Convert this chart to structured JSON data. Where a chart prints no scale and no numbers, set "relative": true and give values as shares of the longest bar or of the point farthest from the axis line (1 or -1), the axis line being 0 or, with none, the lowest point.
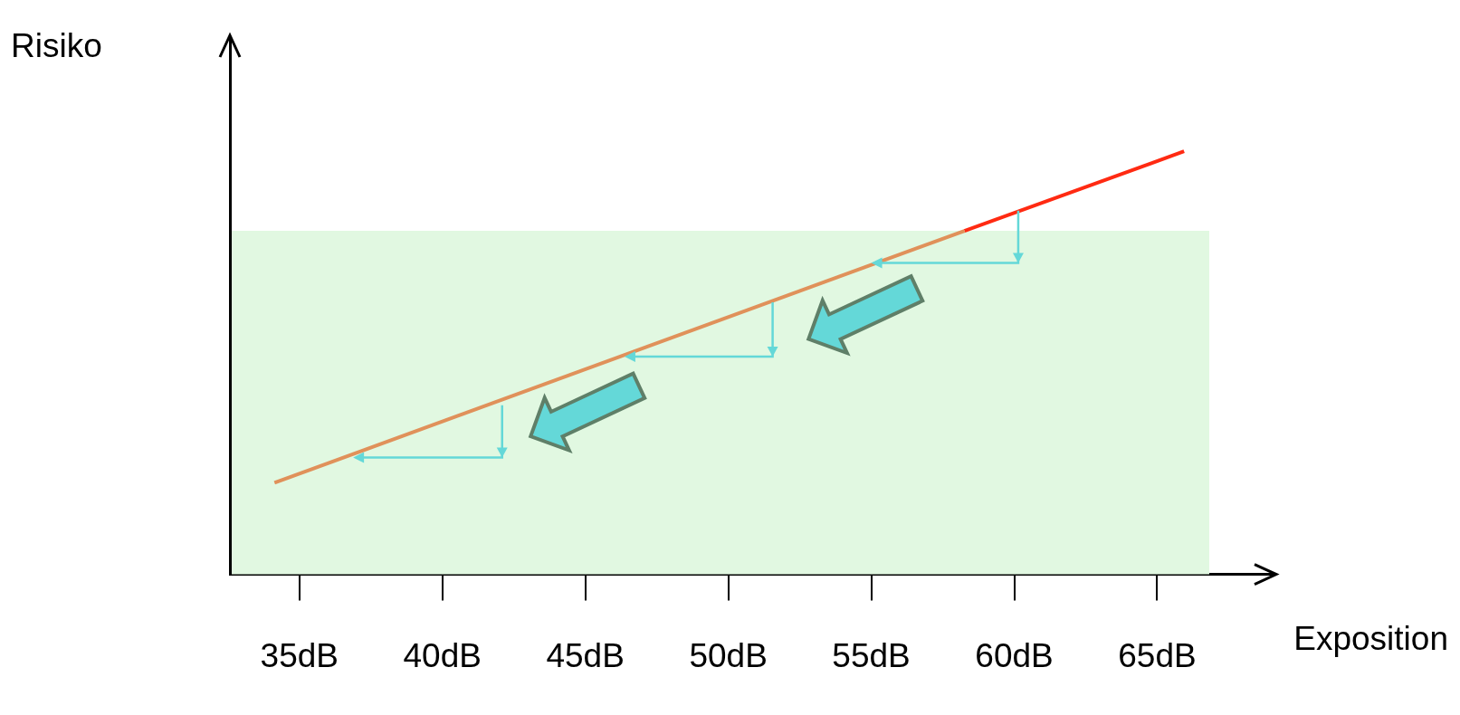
{
  "chart_data": {
    "type": "line",
    "relative": true,
    "xlabel": "Exposition",
    "ylabel": "Risiko",
    "xlim": [
      32.57,
      69.1
    ],
    "xticks": [
      {
        "value": 35,
        "label": "35dB"
      },
      {
        "value": 40,
        "label": "40dB"
      },
      {
        "value": 45,
        "label": "45dB"
      },
      {
        "value": 50,
        "label": "50dB"
      },
      {
        "value": 55,
        "label": "55dB"
      },
      {
        "value": 60,
        "label": "60dB"
      },
      {
        "value": 65,
        "label": "65dB"
      }
    ],
    "series": [
      {
        "color": "#e0915a",
        "x": [
          34.13,
          58.26
        ],
        "values": [
          0.2165,
          0.812
        ]
      },
      {
        "color": "#ff2a12",
        "x": [
          58.26,
          65.94
        ],
        "values": [
          0.812,
          1
        ]
      }
    ],
    "bands": [
      {
        "axis": "y",
        "from": 0,
        "to": 0.812,
        "color": "#e1f8e1"
      }
    ],
    "grid": false,
    "legend": false,
    "marker": "none",
    "line_style": "solid"
  }
}
